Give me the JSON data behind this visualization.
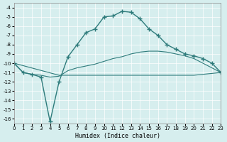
{
  "xlabel": "Humidex (Indice chaleur)",
  "xlim": [
    0,
    23
  ],
  "ylim": [
    -16.5,
    -3.5
  ],
  "yticks": [
    -4,
    -5,
    -6,
    -7,
    -8,
    -9,
    -10,
    -11,
    -12,
    -13,
    -14,
    -15,
    -16
  ],
  "xticks": [
    0,
    1,
    2,
    3,
    4,
    5,
    6,
    7,
    8,
    9,
    10,
    11,
    12,
    13,
    14,
    15,
    16,
    17,
    18,
    19,
    20,
    21,
    22,
    23
  ],
  "bg_color": "#d6eeee",
  "line_color": "#2e7b7b",
  "grid_color": "#ffffff",
  "line1_x": [
    0,
    1,
    2,
    3,
    4,
    5,
    6,
    7,
    8,
    9,
    10,
    11,
    12,
    13,
    14,
    15,
    16,
    17,
    18,
    19,
    20,
    21,
    22,
    23
  ],
  "line1_y": [
    -10.0,
    -11.0,
    -11.2,
    -11.5,
    -16.3,
    -12.0,
    -9.3,
    -8.0,
    -6.7,
    -6.3,
    -5.0,
    -4.9,
    -4.4,
    -4.5,
    -5.2,
    -6.3,
    -7.0,
    -8.0,
    -8.5,
    -9.0,
    -9.2,
    -9.5,
    -10.0,
    -11.0
  ],
  "line2_x": [
    0,
    1,
    2,
    3,
    4,
    5,
    6,
    7,
    8,
    9,
    10,
    11,
    12,
    13,
    14,
    15,
    16,
    17,
    18,
    19,
    20,
    21,
    22,
    23
  ],
  "line2_y": [
    -10.0,
    -11.0,
    -11.2,
    -11.3,
    -11.5,
    -11.4,
    -10.8,
    -10.5,
    -10.3,
    -10.1,
    -9.8,
    -9.5,
    -9.3,
    -9.0,
    -8.8,
    -8.7,
    -8.7,
    -8.8,
    -9.0,
    -9.2,
    -9.5,
    -10.0,
    -10.5,
    -11.0
  ],
  "line3_x": [
    0,
    5,
    10,
    15,
    20,
    23
  ],
  "line3_y": [
    -10.0,
    -11.3,
    -11.3,
    -11.3,
    -11.3,
    -11.0
  ]
}
